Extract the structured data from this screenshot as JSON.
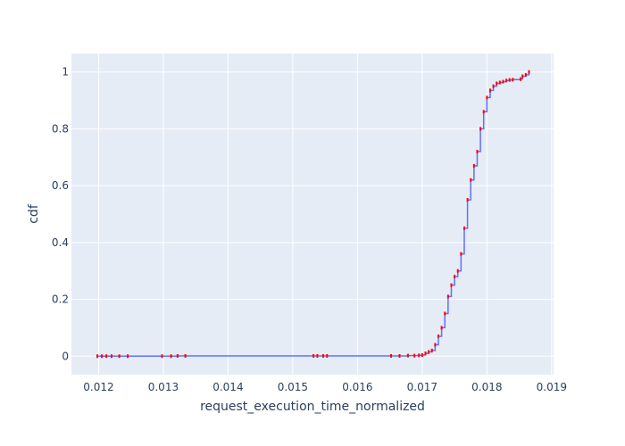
{
  "chart_data": {
    "type": "line",
    "xlabel": "request_execution_time_normalized",
    "ylabel": "cdf",
    "xlim": [
      0.01158,
      0.01903
    ],
    "ylim": [
      -0.065,
      1.065
    ],
    "x_ticks": [
      0.012,
      0.013,
      0.014,
      0.015,
      0.016,
      0.017,
      0.018,
      0.019
    ],
    "x_tick_labels": [
      "0.012",
      "0.013",
      "0.014",
      "0.015",
      "0.016",
      "0.017",
      "0.018",
      "0.019"
    ],
    "y_ticks": [
      0,
      0.2,
      0.4,
      0.6,
      0.8,
      1
    ],
    "y_tick_labels": [
      "0",
      "0.2",
      "0.4",
      "0.6",
      "0.8",
      "1"
    ],
    "grid": true,
    "colors": {
      "plot_bg": "#e5ecf6",
      "grid": "#ffffff",
      "step_line": "#636efa",
      "markers": "#ff0000",
      "text": "#2a3f5f"
    },
    "series": [
      {
        "values": [
          [
            0.01198,
            0.0
          ],
          [
            0.01205,
            0.0
          ],
          [
            0.01212,
            0.0
          ],
          [
            0.0122,
            0.0
          ],
          [
            0.01232,
            0.0
          ],
          [
            0.01245,
            0.0
          ],
          [
            0.01298,
            0.0
          ],
          [
            0.01312,
            0.0
          ],
          [
            0.01322,
            0.001
          ],
          [
            0.01334,
            0.001
          ],
          [
            0.01532,
            0.001
          ],
          [
            0.01538,
            0.001
          ],
          [
            0.01547,
            0.001
          ],
          [
            0.01553,
            0.001
          ],
          [
            0.01652,
            0.001
          ],
          [
            0.01665,
            0.001
          ],
          [
            0.01678,
            0.002
          ],
          [
            0.01688,
            0.002
          ],
          [
            0.01695,
            0.003
          ],
          [
            0.017,
            0.004
          ],
          [
            0.01705,
            0.01
          ],
          [
            0.0171,
            0.015
          ],
          [
            0.01715,
            0.02
          ],
          [
            0.0172,
            0.04
          ],
          [
            0.01725,
            0.07
          ],
          [
            0.0173,
            0.1
          ],
          [
            0.01735,
            0.15
          ],
          [
            0.0174,
            0.21
          ],
          [
            0.01745,
            0.25
          ],
          [
            0.0175,
            0.28
          ],
          [
            0.01755,
            0.3
          ],
          [
            0.0176,
            0.36
          ],
          [
            0.01765,
            0.45
          ],
          [
            0.0177,
            0.55
          ],
          [
            0.01775,
            0.62
          ],
          [
            0.0178,
            0.67
          ],
          [
            0.01785,
            0.72
          ],
          [
            0.0179,
            0.8
          ],
          [
            0.01795,
            0.86
          ],
          [
            0.018,
            0.91
          ],
          [
            0.01805,
            0.935
          ],
          [
            0.0181,
            0.95
          ],
          [
            0.01815,
            0.96
          ],
          [
            0.0182,
            0.963
          ],
          [
            0.01825,
            0.966
          ],
          [
            0.0183,
            0.97
          ],
          [
            0.01835,
            0.972
          ],
          [
            0.0184,
            0.973
          ],
          [
            0.01852,
            0.975
          ],
          [
            0.01855,
            0.985
          ],
          [
            0.0186,
            0.99
          ],
          [
            0.01865,
            1.0
          ]
        ]
      }
    ]
  }
}
